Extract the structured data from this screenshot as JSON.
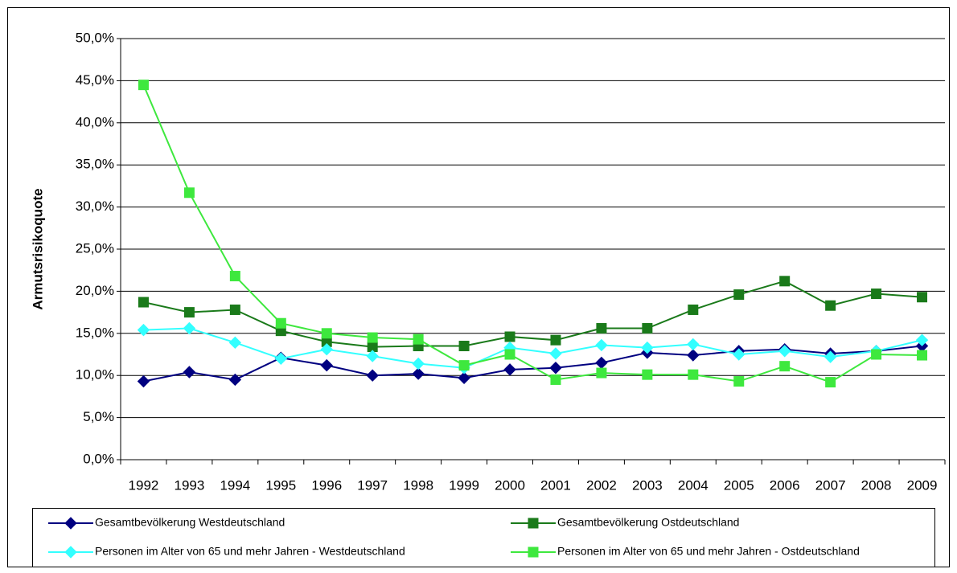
{
  "chart_data": {
    "type": "line",
    "y_label": "Armutsrisikoquote",
    "categories": [
      "1992",
      "1993",
      "1994",
      "1995",
      "1996",
      "1997",
      "1998",
      "1999",
      "2000",
      "2001",
      "2002",
      "2003",
      "2004",
      "2005",
      "2006",
      "2007",
      "2008",
      "2009"
    ],
    "series": [
      {
        "name": "Gesamtbevölkerung Westdeutschland",
        "color": "#000080",
        "marker": "diamond",
        "values": [
          9.3,
          10.4,
          9.5,
          12.1,
          11.2,
          10.0,
          10.2,
          9.7,
          10.7,
          10.9,
          11.5,
          12.7,
          12.4,
          12.9,
          13.1,
          12.6,
          12.9,
          13.5
        ]
      },
      {
        "name": "Gesamtbevölkerung Ostdeutschland",
        "color": "#1a7a1a",
        "marker": "square",
        "values": [
          18.7,
          17.5,
          17.8,
          15.3,
          14.0,
          13.4,
          13.5,
          13.5,
          14.6,
          14.2,
          15.6,
          15.6,
          17.8,
          19.6,
          21.2,
          18.3,
          19.7,
          19.3
        ]
      },
      {
        "name": "Personen im Alter von 65 und mehr Jahren  - Westdeutschland",
        "color": "#33ffff",
        "marker": "diamond",
        "values": [
          15.4,
          15.6,
          13.9,
          12.0,
          13.1,
          12.3,
          11.4,
          10.9,
          13.3,
          12.6,
          13.6,
          13.3,
          13.7,
          12.5,
          12.9,
          12.2,
          12.9,
          14.2
        ]
      },
      {
        "name": "Personen im Alter von 65 und mehr Jahren  - Ostdeutschland",
        "color": "#3ee83e",
        "marker": "square",
        "values": [
          44.5,
          31.7,
          21.8,
          16.2,
          15.0,
          14.5,
          14.3,
          11.2,
          12.5,
          9.5,
          10.3,
          10.1,
          10.1,
          9.3,
          11.1,
          9.2,
          12.5,
          12.4
        ]
      }
    ],
    "ylim": [
      0,
      50
    ],
    "yticks": [
      {
        "value": 0,
        "label": "0,0%"
      },
      {
        "value": 5,
        "label": "5,0%"
      },
      {
        "value": 10,
        "label": "10,0%"
      },
      {
        "value": 15,
        "label": "15,0%"
      },
      {
        "value": 20,
        "label": "20,0%"
      },
      {
        "value": 25,
        "label": "25,0%"
      },
      {
        "value": 30,
        "label": "30,0%"
      },
      {
        "value": 35,
        "label": "35,0%"
      },
      {
        "value": 40,
        "label": "40,0%"
      },
      {
        "value": 45,
        "label": "45,0%"
      },
      {
        "value": 50,
        "label": "50,0%"
      }
    ],
    "grid": true,
    "legend": "bottom"
  }
}
